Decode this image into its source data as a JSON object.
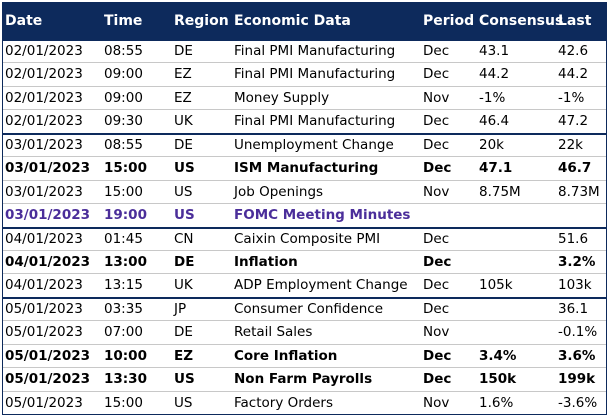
{
  "header": [
    "Date",
    "Time",
    "Region",
    "Economic Data",
    "Period",
    "Consensus",
    "Last"
  ],
  "groups": [
    {
      "rows": [
        {
          "cells": [
            "02/01/2023",
            "08:55",
            "DE",
            "Final PMI Manufacturing",
            "Dec",
            "43.1",
            "42.6"
          ],
          "weight": "normal",
          "color": "#000000"
        },
        {
          "cells": [
            "02/01/2023",
            "09:00",
            "EZ",
            "Final PMI Manufacturing",
            "Dec",
            "44.2",
            "44.2"
          ],
          "weight": "normal",
          "color": "#000000"
        },
        {
          "cells": [
            "02/01/2023",
            "09:00",
            "EZ",
            "Money Supply",
            "Nov",
            "-1%",
            "-1%"
          ],
          "weight": "normal",
          "color": "#000000"
        },
        {
          "cells": [
            "02/01/2023",
            "09:30",
            "UK",
            "Final PMI Manufacturing",
            "Dec",
            "46.4",
            "47.2"
          ],
          "weight": "normal",
          "color": "#000000"
        }
      ]
    },
    {
      "rows": [
        {
          "cells": [
            "03/01/2023",
            "08:55",
            "DE",
            "Unemployment Change",
            "Dec",
            "20k",
            "22k"
          ],
          "weight": "normal",
          "color": "#000000"
        },
        {
          "cells": [
            "03/01/2023",
            "15:00",
            "US",
            "ISM Manufacturing",
            "Dec",
            "47.1",
            "46.7"
          ],
          "weight": "bold",
          "color": "#000000"
        },
        {
          "cells": [
            "03/01/2023",
            "15:00",
            "US",
            "Job Openings",
            "Nov",
            "8.75M",
            "8.73M"
          ],
          "weight": "normal",
          "color": "#000000"
        },
        {
          "cells": [
            "03/01/2023",
            "19:00",
            "US",
            "FOMC Meeting Minutes",
            null,
            null,
            null
          ],
          "weight": "bold",
          "color": "#4b2e9a"
        }
      ]
    },
    {
      "rows": [
        {
          "cells": [
            "04/01/2023",
            "01:45",
            "CN",
            "Caixin Composite PMI",
            "Dec",
            null,
            "51.6"
          ],
          "weight": "normal",
          "color": "#000000"
        },
        {
          "cells": [
            "04/01/2023",
            "13:00",
            "DE",
            "Inflation",
            "Dec",
            null,
            "3.2%"
          ],
          "weight": "bold",
          "color": "#000000"
        },
        {
          "cells": [
            "04/01/2023",
            "13:15",
            "UK",
            "ADP Employment Change",
            "Dec",
            "105k",
            "103k"
          ],
          "weight": "normal",
          "color": "#000000"
        }
      ]
    },
    {
      "rows": [
        {
          "cells": [
            "05/01/2023",
            "03:35",
            "JP",
            "Consumer Confidence",
            "Dec",
            null,
            "36.1"
          ],
          "weight": "normal",
          "color": "#000000"
        },
        {
          "cells": [
            "05/01/2023",
            "07:00",
            "DE",
            "Retail Sales",
            "Nov",
            null,
            "-0.1%"
          ],
          "weight": "normal",
          "color": "#000000"
        },
        {
          "cells": [
            "05/01/2023",
            "10:00",
            "EZ",
            "Core Inflation",
            "Dec",
            "3.4%",
            "3.6%"
          ],
          "weight": "bold",
          "color": "#000000"
        },
        {
          "cells": [
            "05/01/2023",
            "13:30",
            "US",
            "Non Farm Payrolls",
            "Dec",
            "150k",
            "199k"
          ],
          "weight": "bold",
          "color": "#000000"
        },
        {
          "cells": [
            "05/01/2023",
            "15:00",
            "US",
            "Factory Orders",
            "Nov",
            "1.6%",
            "-3.6%"
          ],
          "weight": "normal",
          "color": "#000000"
        }
      ]
    }
  ]
}
